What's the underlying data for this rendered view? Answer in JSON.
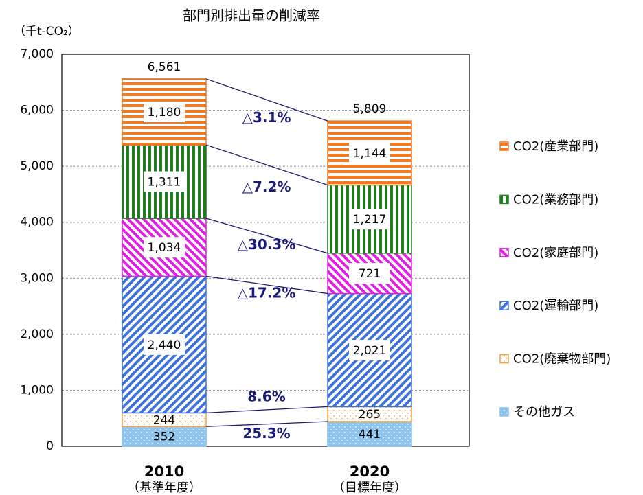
{
  "chart_data": {
    "type": "stacked_bar",
    "title": "部門別排出量の削減率",
    "ylabel": "（千t-CO₂）",
    "categories": [
      "2010",
      "2020"
    ],
    "category_sublabels": [
      "（基準年度）",
      "（目標年度）"
    ],
    "ylim": [
      0,
      7000
    ],
    "yticks": [
      0,
      {
        "value": 1000,
        "label": "1,000"
      },
      {
        "value": 2000,
        "label": "2,000"
      },
      {
        "value": 3000,
        "label": "3,000"
      },
      {
        "value": 4000,
        "label": "4,000"
      },
      {
        "value": 5000,
        "label": "5,000"
      },
      {
        "value": 6000,
        "label": "6,000"
      },
      {
        "value": 7000,
        "label": "7,000"
      }
    ],
    "grid": true,
    "legend": "right",
    "series": [
      {
        "name": "その他ガス",
        "color": "#8cc4ee",
        "pattern": "dots-filled",
        "values": [
          352,
          441
        ],
        "value_labels": [
          "352",
          "441"
        ],
        "change_label": "25.3%"
      },
      {
        "name": "CO2(廃棄物部門)",
        "color": "#f5a13c",
        "pattern": "dots",
        "values": [
          244,
          265
        ],
        "value_labels": [
          "244",
          "265"
        ],
        "change_label": "8.6%"
      },
      {
        "name": "CO2(運輸部門)",
        "color": "#3d72da",
        "pattern": "diag-up",
        "values": [
          2440,
          2021
        ],
        "value_labels": [
          "2,440",
          "2,021"
        ],
        "change_label": "△17.2%"
      },
      {
        "name": "CO2(家庭部門)",
        "color": "#e020e0",
        "pattern": "diag-down",
        "values": [
          1034,
          721
        ],
        "value_labels": [
          "1,034",
          "721"
        ],
        "change_label": "△30.3%"
      },
      {
        "name": "CO2(業務部門)",
        "color": "#1e7d1e",
        "pattern": "v-stripes",
        "values": [
          1311,
          1217
        ],
        "value_labels": [
          "1,311",
          "1,217"
        ],
        "change_label": "△7.2%"
      },
      {
        "name": "CO2(産業部門)",
        "color": "#f27a22",
        "pattern": "h-stripes",
        "values": [
          1180,
          1144
        ],
        "value_labels": [
          "1,180",
          "1,144"
        ],
        "change_label": "△3.1%"
      }
    ],
    "totals": {
      "values": [
        6561,
        5809
      ],
      "value_labels": [
        "6,561",
        "5,809"
      ]
    }
  }
}
